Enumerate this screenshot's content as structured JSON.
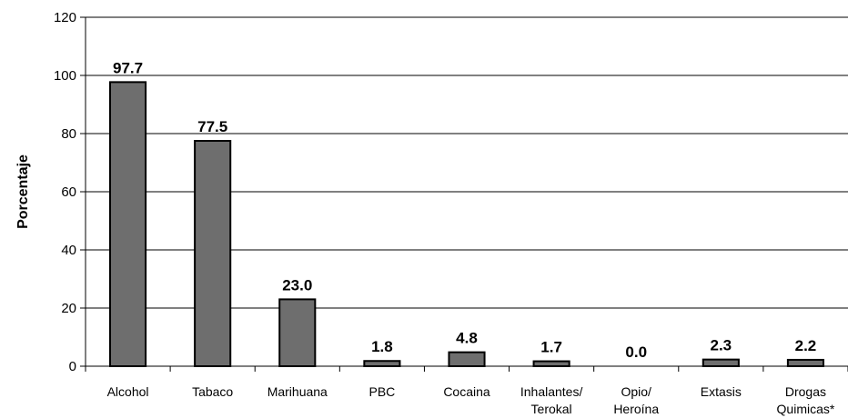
{
  "chart_data": {
    "type": "bar",
    "title": "",
    "xlabel": "",
    "ylabel": "Porcentaje",
    "ylim": [
      0,
      120
    ],
    "yticks": [
      "0",
      "20",
      "40",
      "60",
      "80",
      "100",
      "120"
    ],
    "grid": true,
    "categories": [
      [
        "Alcohol"
      ],
      [
        "Tabaco"
      ],
      [
        "Marihuana"
      ],
      [
        "PBC"
      ],
      [
        "Cocaina"
      ],
      [
        "Inhalantes/",
        "Terokal"
      ],
      [
        "Opio/",
        "Heroína"
      ],
      [
        "Extasis"
      ],
      [
        "Drogas",
        "Quimicas*"
      ]
    ],
    "values": [
      97.7,
      77.5,
      23.0,
      1.8,
      4.8,
      1.7,
      0.0,
      2.3,
      2.2
    ],
    "data_labels": [
      "97.7",
      "77.5",
      "23.0",
      "1.8",
      "4.8",
      "1.7",
      "0.0",
      "2.3",
      "2.2"
    ],
    "colors": {
      "bar_fill": "#6e6e6e",
      "bar_stroke": "#000000",
      "grid": "#000000",
      "axis": "#000000"
    }
  }
}
